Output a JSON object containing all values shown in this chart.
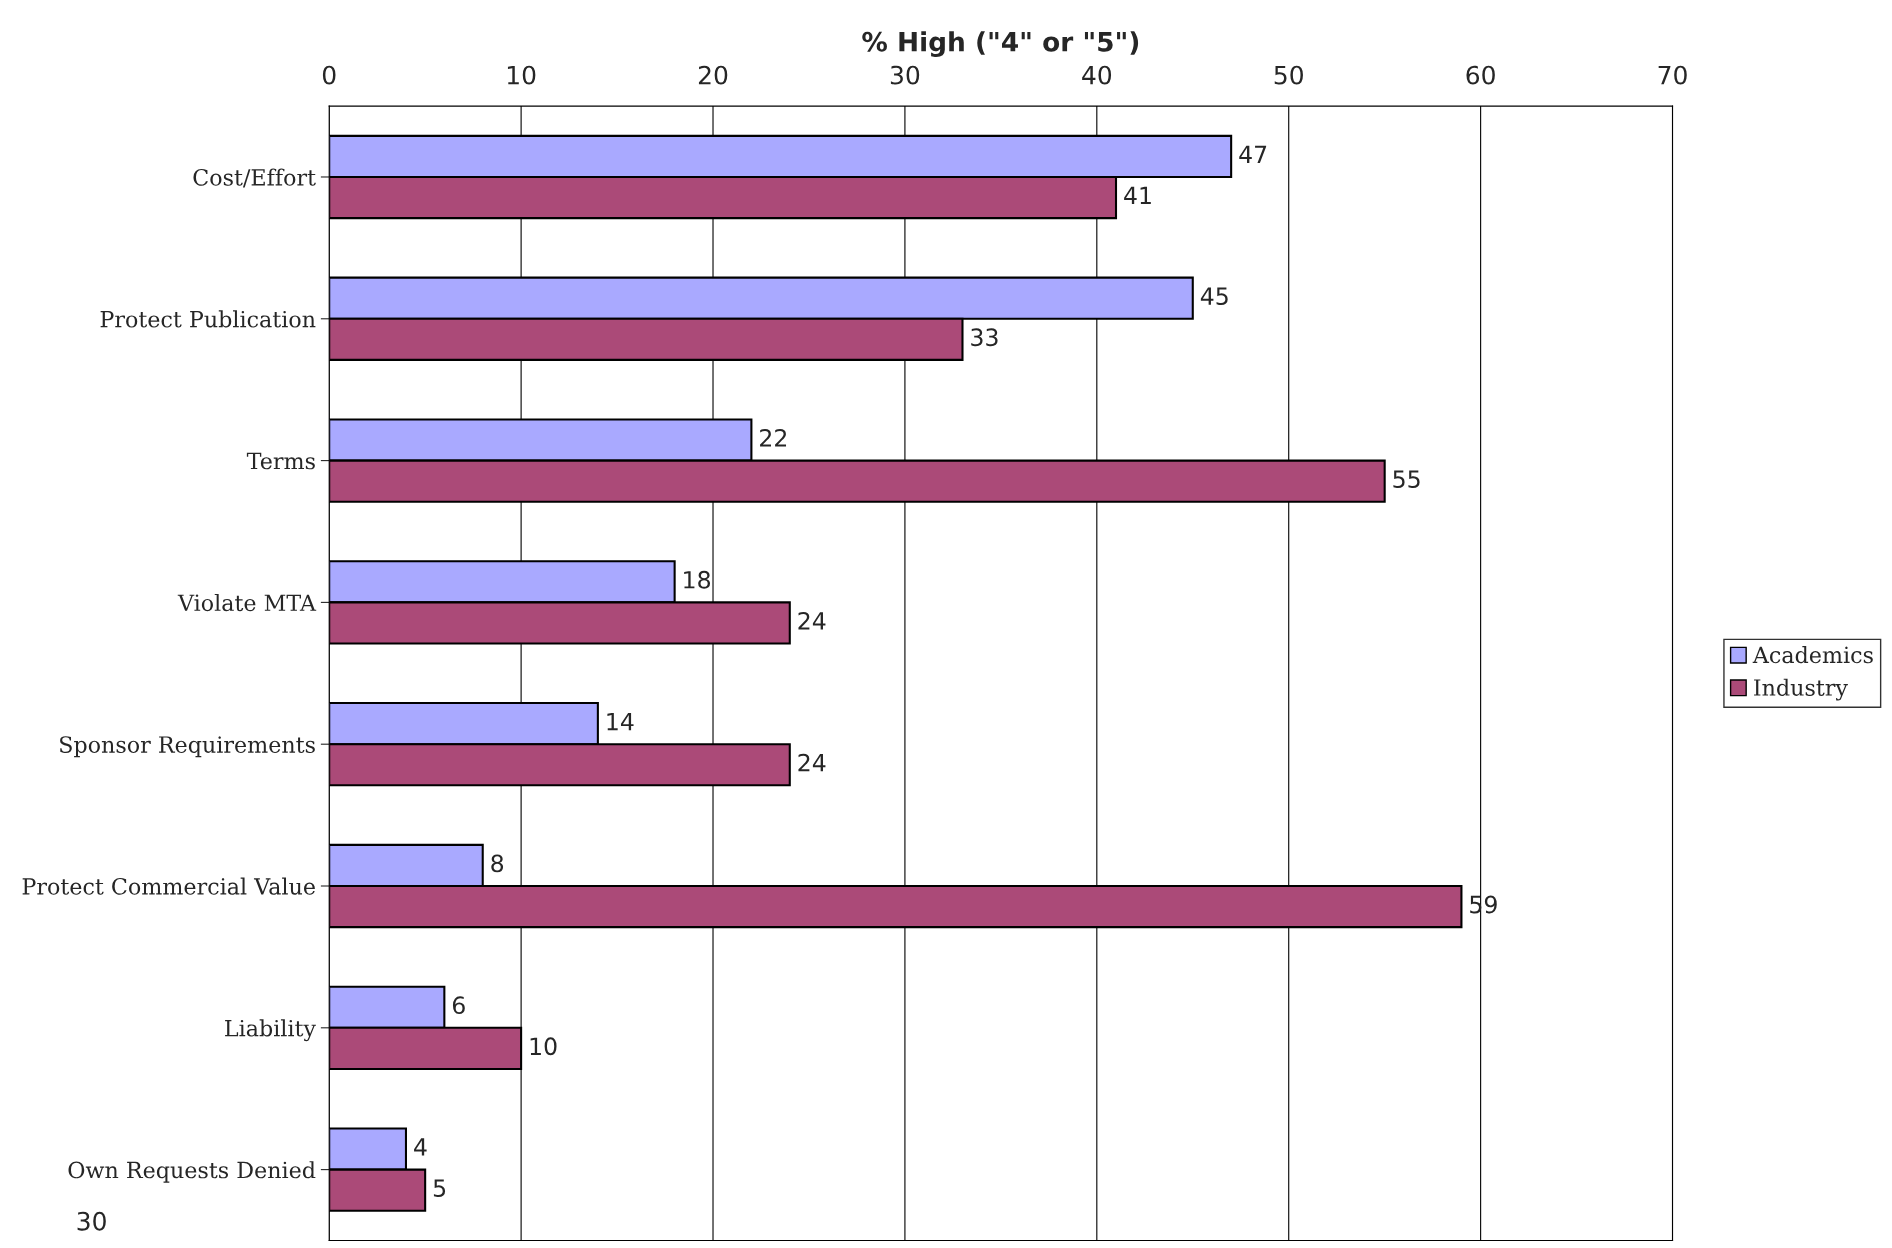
{
  "chart_data": {
    "type": "bar",
    "orientation": "horizontal",
    "xlabel": "% High (\"4\" or \"5\")",
    "categories": [
      "Cost/Effort",
      "Protect Publication",
      "Terms",
      "Violate MTA",
      "Sponsor Requirements",
      "Protect Commercial Value",
      "Liability",
      "Own Requests Denied"
    ],
    "series": [
      {
        "name": "Academics",
        "color": "#a9a9ff",
        "values": [
          47,
          45,
          22,
          18,
          14,
          8,
          6,
          4
        ]
      },
      {
        "name": "Industry",
        "color": "#ab4a78",
        "values": [
          41,
          33,
          55,
          24,
          24,
          59,
          10,
          5
        ]
      }
    ],
    "xlim": [
      0,
      70
    ],
    "xticks": [
      0,
      10,
      20,
      30,
      40,
      50,
      60,
      70
    ],
    "grid": "x",
    "legend": "right",
    "data_labels": true,
    "annotations": [
      "30"
    ]
  }
}
